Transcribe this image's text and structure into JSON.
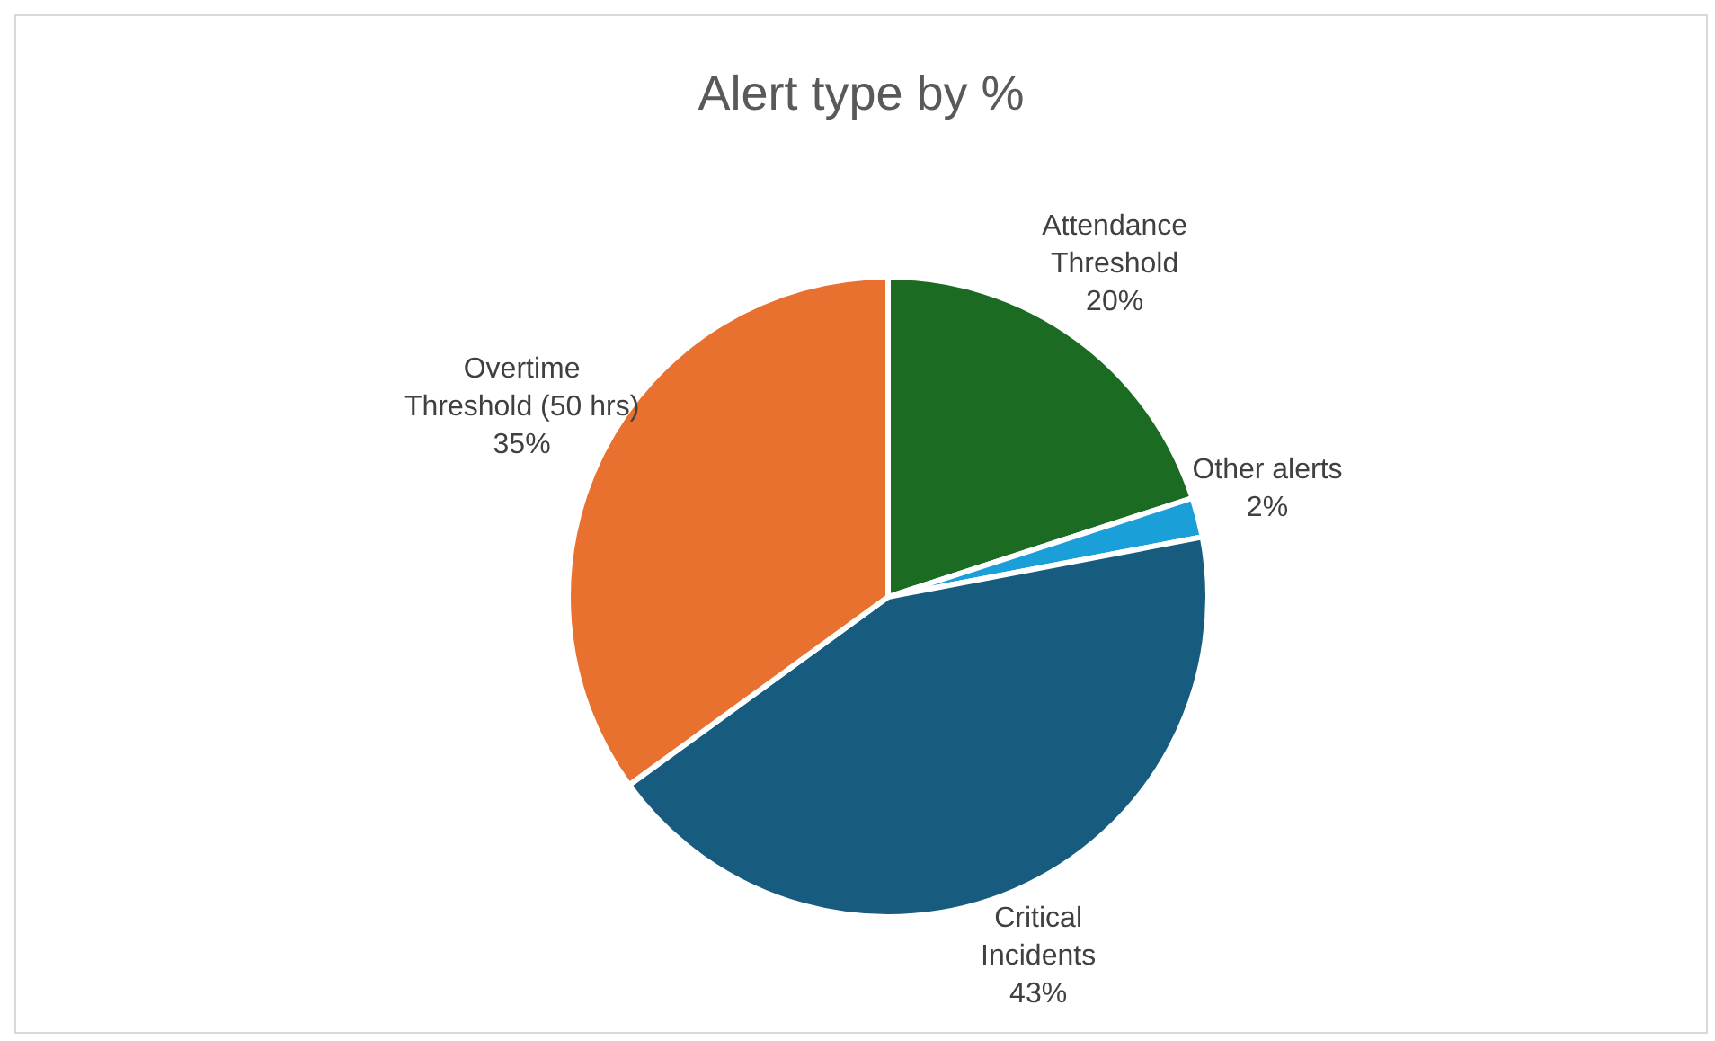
{
  "chart_data": {
    "type": "pie",
    "title": "Alert type by %",
    "categories": [
      "Attendance Threshold",
      "Other alerts",
      "Critical Incidents",
      "Overtime Threshold (50 hrs)"
    ],
    "values": [
      20,
      2,
      43,
      35
    ],
    "colors": [
      "#1b6b23",
      "#1a9fd9",
      "#175c7e",
      "#e87130"
    ],
    "value_labels": [
      "20%",
      "2%",
      "43%",
      "35%"
    ],
    "legend": false
  }
}
